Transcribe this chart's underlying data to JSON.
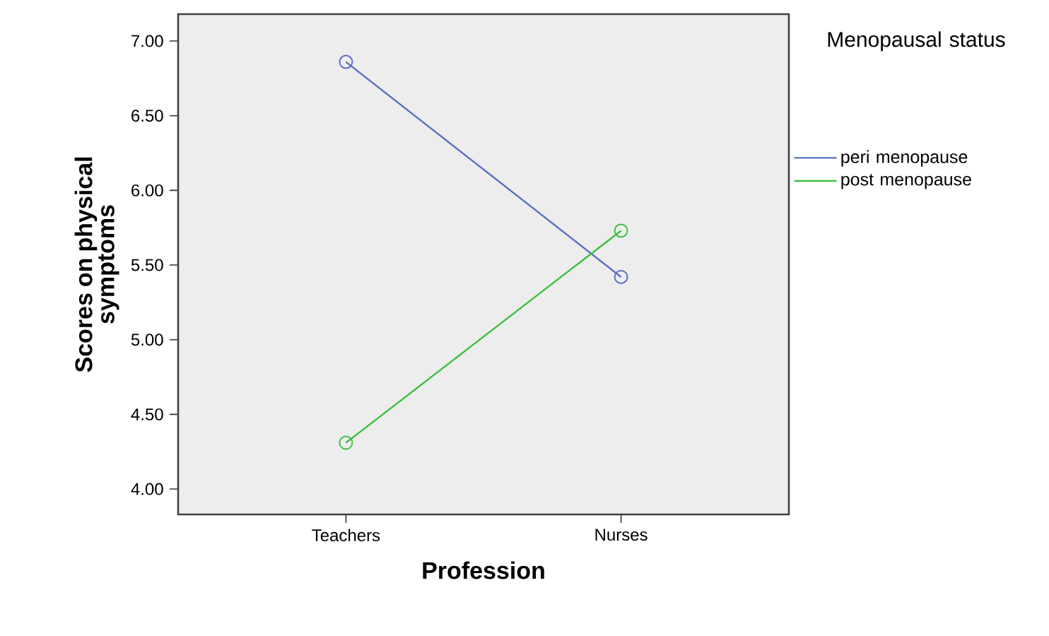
{
  "chart_data": {
    "type": "line",
    "xlabel": "Profession",
    "ylabel": "Scores on physical symptoms",
    "legend_title": "Menopausal status",
    "categories": [
      "Teachers",
      "Nurses"
    ],
    "series": [
      {
        "name": "peri menopause",
        "color": "#5a6fc4",
        "values": [
          6.86,
          5.42
        ]
      },
      {
        "name": "post menopause",
        "color": "#3fbf3f",
        "values": [
          4.31,
          5.73
        ]
      }
    ],
    "ylim": [
      3.83,
      7.18
    ],
    "yticks": [
      {
        "value": 4,
        "label": "4.00"
      },
      {
        "value": 4.5,
        "label": "4.50"
      },
      {
        "value": 5,
        "label": "5.00"
      },
      {
        "value": 5.5,
        "label": "5.50"
      },
      {
        "value": 6,
        "label": "6.00"
      },
      {
        "value": 6.5,
        "label": "6.50"
      },
      {
        "value": 7,
        "label": "7.00"
      }
    ],
    "grid": false,
    "legend": "right",
    "marker": "circle",
    "line_style": "solid"
  }
}
